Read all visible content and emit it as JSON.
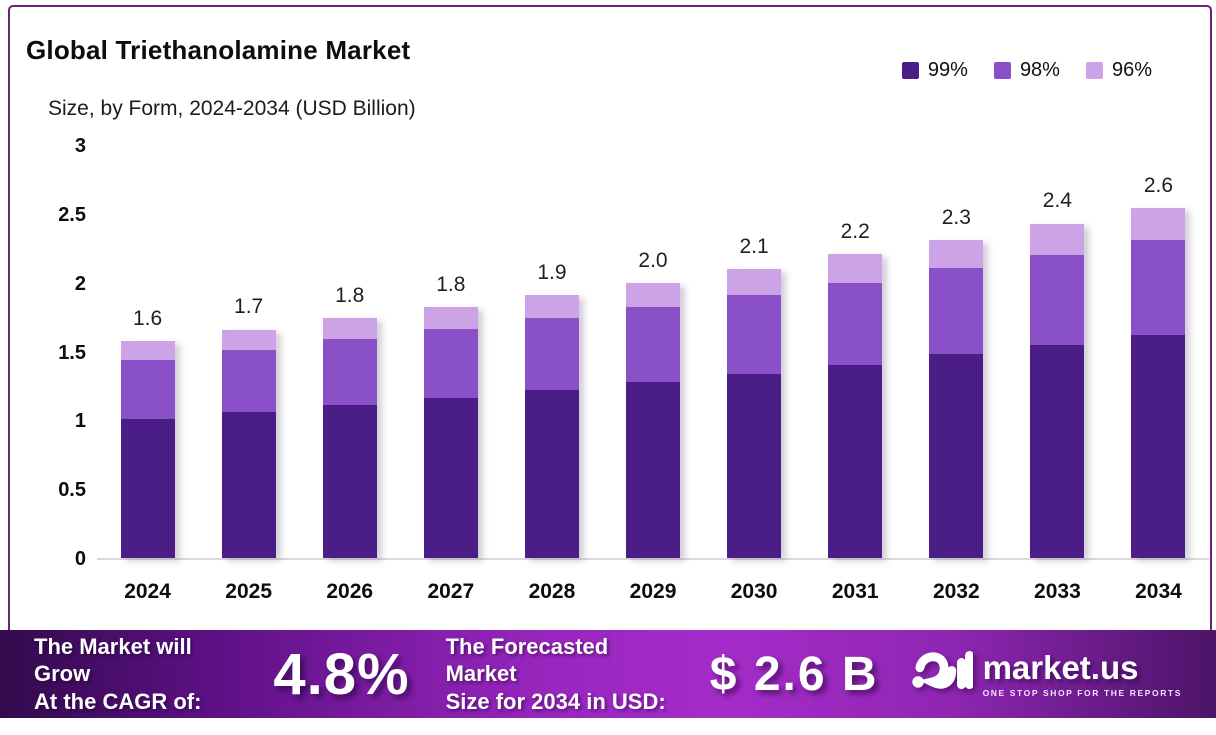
{
  "header": {
    "title": "Global Triethanolamine Market",
    "subtitle": "Size, by Form, 2024-2034 (USD Billion)"
  },
  "colors": {
    "purity_99": "#4A1D87",
    "purity_98": "#8A50C7",
    "purity_96": "#CDA3E8",
    "card_border": "#6C2077",
    "banner_left": "#320A4D",
    "banner_mid": "#A52CC9",
    "banner_right": "#4C1468"
  },
  "chart_data": {
    "type": "bar",
    "stacked": true,
    "title": "Global Triethanolamine Market Size, by Form, 2024-2034 (USD Billion)",
    "xlabel": "",
    "ylabel": "",
    "ylim": [
      0,
      3
    ],
    "yticks": [
      "0",
      "0.5",
      "1",
      "1.5",
      "2",
      "2.5",
      "3"
    ],
    "grid": false,
    "legend_position": "top-right",
    "categories": [
      "2024",
      "2025",
      "2026",
      "2027",
      "2028",
      "2029",
      "2030",
      "2031",
      "2032",
      "2033",
      "2034"
    ],
    "series": [
      {
        "name": "99%",
        "color": "#4A1D87",
        "values": [
          1.01,
          1.06,
          1.11,
          1.16,
          1.22,
          1.28,
          1.34,
          1.4,
          1.48,
          1.55,
          1.62
        ]
      },
      {
        "name": "98%",
        "color": "#8A50C7",
        "values": [
          0.43,
          0.45,
          0.48,
          0.5,
          0.52,
          0.54,
          0.57,
          0.6,
          0.63,
          0.65,
          0.69
        ]
      },
      {
        "name": "96%",
        "color": "#CDA3E8",
        "values": [
          0.14,
          0.15,
          0.15,
          0.16,
          0.17,
          0.18,
          0.19,
          0.21,
          0.2,
          0.23,
          0.23
        ]
      }
    ],
    "total_labels": [
      "1.6",
      "1.7",
      "1.8",
      "1.8",
      "1.9",
      "2.0",
      "2.1",
      "2.2",
      "2.3",
      "2.4",
      "2.6"
    ]
  },
  "banner": {
    "growth_line1": "The Market will Grow",
    "growth_line2": "At the CAGR of:",
    "cagr_value": "4.8%",
    "forecast_line1": "The Forecasted Market",
    "forecast_line2": "Size for 2034 in USD:",
    "forecast_value": "$ 2.6 B",
    "brand_name": "market.us",
    "brand_tagline": "ONE STOP SHOP FOR THE REPORTS"
  }
}
